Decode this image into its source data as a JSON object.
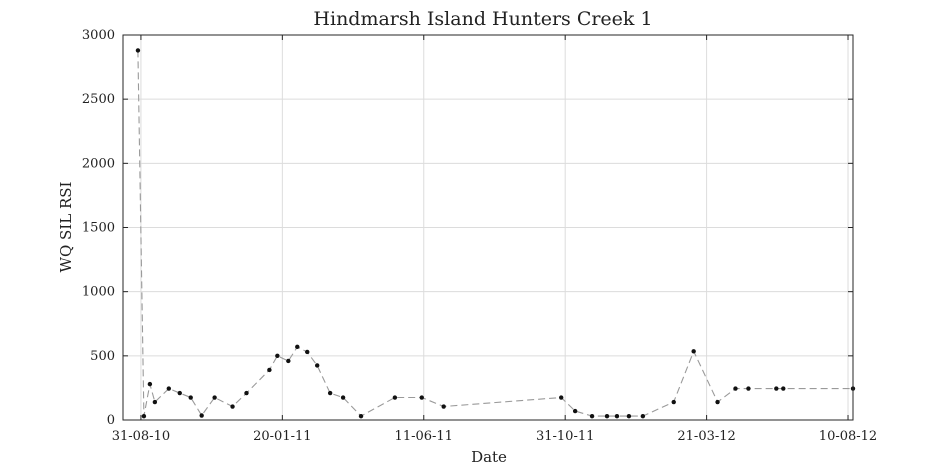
{
  "chart_data": {
    "type": "line",
    "title": "Hindmarsh Island Hunters Creek 1",
    "xlabel": "Date",
    "ylabel": "WQ SIL RSI",
    "xlim": [
      "2010-08-13",
      "2012-08-15"
    ],
    "ylim": [
      0,
      3000
    ],
    "grid": true,
    "line_style": "dashed",
    "line_color": "#9a9a9a",
    "marker_color": "#111111",
    "x_ticks": [
      {
        "date": "2010-08-31",
        "label": "31-08-10"
      },
      {
        "date": "2011-01-20",
        "label": "20-01-11"
      },
      {
        "date": "2011-06-11",
        "label": "11-06-11"
      },
      {
        "date": "2011-10-31",
        "label": "31-10-11"
      },
      {
        "date": "2012-03-21",
        "label": "21-03-12"
      },
      {
        "date": "2012-08-10",
        "label": "10-08-12"
      }
    ],
    "y_ticks": [
      0,
      500,
      1000,
      1500,
      2000,
      2500,
      3000
    ],
    "series": [
      {
        "x": [
          "2010-08-28",
          "2010-09-03",
          "2010-09-09",
          "2010-09-14",
          "2010-09-28",
          "2010-10-09",
          "2010-10-20",
          "2010-10-31",
          "2010-11-13",
          "2010-12-01",
          "2010-12-15",
          "2011-01-07",
          "2011-01-15",
          "2011-01-26",
          "2011-02-04",
          "2011-02-14",
          "2011-02-24",
          "2011-03-09",
          "2011-03-22",
          "2011-04-09",
          "2011-05-13",
          "2011-06-09",
          "2011-07-01",
          "2011-10-27",
          "2011-11-10",
          "2011-11-27",
          "2011-12-12",
          "2011-12-22",
          "2012-01-03",
          "2012-01-17",
          "2012-02-17",
          "2012-03-08",
          "2012-04-01",
          "2012-04-19",
          "2012-05-02",
          "2012-05-30",
          "2012-06-06",
          "2012-08-15"
        ],
        "y": [
          2880,
          30,
          280,
          140,
          245,
          210,
          175,
          35,
          175,
          105,
          210,
          390,
          500,
          460,
          570,
          530,
          425,
          210,
          175,
          30,
          175,
          175,
          105,
          175,
          70,
          30,
          30,
          30,
          30,
          30,
          140,
          535,
          140,
          245,
          245,
          245,
          245,
          245
        ]
      }
    ]
  }
}
